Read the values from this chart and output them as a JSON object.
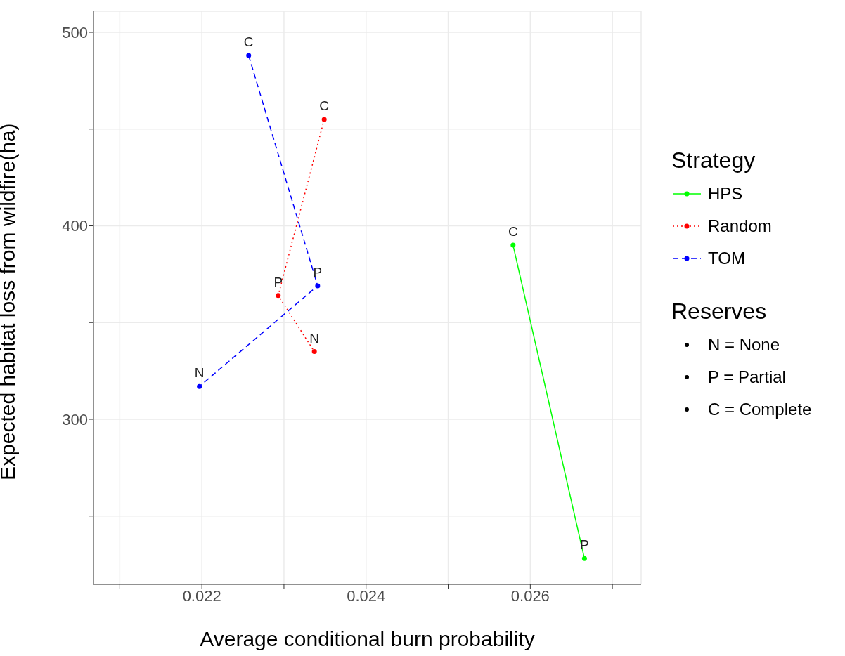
{
  "chart_data": {
    "type": "line",
    "xlabel": "Average conditional burn probability",
    "ylabel": "Expected habitat loss from wildfire(ha)",
    "legend_title": "Strategy",
    "legend": "right",
    "grid": true,
    "marker": "circle",
    "xlim": [
      0.02068,
      0.02735
    ],
    "xticks": [
      {
        "value": 0.021,
        "label": null
      },
      {
        "value": 0.022,
        "label": "0.022"
      },
      {
        "value": 0.023,
        "label": null
      },
      {
        "value": 0.024,
        "label": "0.024"
      },
      {
        "value": 0.025,
        "label": null
      },
      {
        "value": 0.026,
        "label": "0.026"
      },
      {
        "value": 0.027,
        "label": null
      }
    ],
    "ylim": [
      214.7,
      510.9
    ],
    "yticks": [
      {
        "value": 250,
        "label": null
      },
      300,
      {
        "value": 350,
        "label": null
      },
      400,
      {
        "value": 450,
        "label": null
      },
      500
    ],
    "series": [
      {
        "name": "HPS",
        "color": "#00ff00",
        "line_style": "solid",
        "x": [
          0.02579,
          0.02666
        ],
        "values": [
          390,
          228
        ]
      },
      {
        "name": "Random",
        "color": "#ff0000",
        "line_style": "dotted",
        "x": [
          0.02349,
          0.02293,
          0.02337
        ],
        "values": [
          455,
          364,
          335
        ]
      },
      {
        "name": "TOM",
        "color": "#0000ff",
        "line_style": "dashed",
        "x": [
          0.02257,
          0.02341,
          0.02197
        ],
        "values": [
          488,
          369,
          317
        ]
      }
    ],
    "annotations": [
      {
        "text": "C",
        "x": 0.02579,
        "y": 390
      },
      {
        "text": "P",
        "x": 0.02666,
        "y": 228
      },
      {
        "text": "C",
        "x": 0.02349,
        "y": 455
      },
      {
        "text": "P",
        "x": 0.02293,
        "y": 364
      },
      {
        "text": "N",
        "x": 0.02337,
        "y": 335
      },
      {
        "text": "C",
        "x": 0.02257,
        "y": 488
      },
      {
        "text": "P",
        "x": 0.02341,
        "y": 369
      },
      {
        "text": "N",
        "x": 0.02197,
        "y": 317
      },
      "Reserves",
      "N = None",
      "P = Partial",
      "C = Complete"
    ]
  }
}
